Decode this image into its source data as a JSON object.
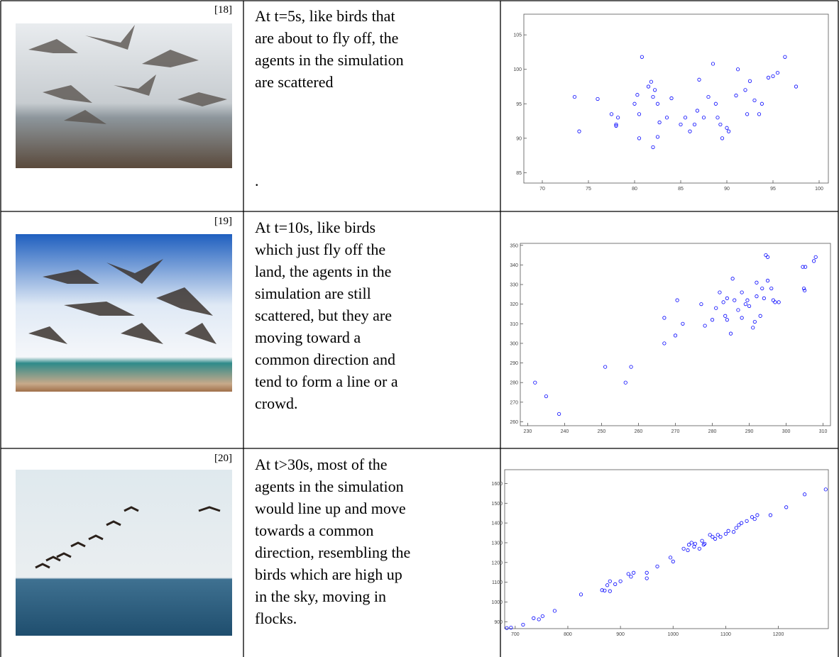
{
  "table": {
    "rows": [
      {
        "citation": "[18]",
        "text": [
          "At t=5s, like birds that",
          "are about to fly off, the",
          "agents in the simulation",
          "are scattered"
        ],
        "note": "."
      },
      {
        "citation": "[19]",
        "text": [
          "At t=10s, like birds",
          "which just fly off the",
          "land, the agents in the",
          "simulation are still",
          "scattered, but they are",
          "moving toward a",
          "common direction and",
          "tend to form a line or a",
          "crowd."
        ]
      },
      {
        "citation": "[20]",
        "text": [
          "At t>30s, most of the",
          "agents in the simulation",
          "would line up and move",
          "towards a common",
          "direction, resembling the",
          "birds which are high up",
          "in the sky, moving in",
          "flocks."
        ]
      }
    ]
  },
  "chart_data": [
    {
      "type": "scatter",
      "color": "#0000ff",
      "xlim": [
        68,
        101
      ],
      "ylim": [
        83.5,
        108
      ],
      "xticks": [
        70,
        75,
        80,
        85,
        90,
        95,
        100
      ],
      "yticks": [
        85,
        90,
        95,
        100,
        105
      ],
      "x": [
        73.5,
        74,
        76,
        77.5,
        78,
        78.2,
        78,
        80,
        80.3,
        80.5,
        80.8,
        80.5,
        81.5,
        81.8,
        82,
        82.2,
        82.5,
        82,
        82.7,
        82.5,
        83.5,
        84,
        85,
        85.5,
        86,
        86.5,
        86.8,
        87,
        87.5,
        88,
        88.5,
        88.8,
        89,
        89.3,
        89.5,
        90,
        90.2,
        91,
        91.2,
        92,
        92.2,
        92.5,
        93,
        93.5,
        93.8,
        94.5,
        95,
        95.5,
        96.3,
        97.5
      ],
      "values": [
        96,
        91,
        95.7,
        93.5,
        92,
        93,
        91.8,
        95,
        96.3,
        93.5,
        101.8,
        90,
        97.5,
        98.2,
        96,
        97,
        95,
        88.7,
        92.3,
        90.2,
        93,
        95.8,
        92,
        93,
        91,
        92,
        94,
        98.5,
        93,
        96,
        100.8,
        95,
        93,
        92,
        90,
        91.5,
        91,
        96.2,
        100,
        97,
        93.5,
        98.3,
        95.5,
        93.5,
        95,
        98.8,
        99,
        99.5,
        101.8,
        97.5
      ]
    },
    {
      "type": "scatter",
      "color": "#0000ff",
      "xlim": [
        228,
        312
      ],
      "ylim": [
        258,
        351
      ],
      "xticks": [
        230,
        240,
        250,
        260,
        270,
        280,
        290,
        300,
        310
      ],
      "yticks": [
        260,
        270,
        280,
        290,
        300,
        310,
        320,
        330,
        340,
        350
      ],
      "x": [
        232,
        235,
        238.5,
        251,
        256.5,
        258,
        267,
        267,
        270,
        270.5,
        272,
        277,
        278,
        280,
        281,
        282,
        283,
        283.5,
        284,
        284,
        285,
        285.5,
        286,
        287,
        288,
        288,
        289,
        289.5,
        290,
        291,
        291.5,
        292,
        292,
        293,
        293.5,
        294,
        294.5,
        295,
        295,
        296,
        296.5,
        297,
        298,
        304.5,
        304.8,
        305,
        305.2,
        307.5,
        308
      ],
      "values": [
        280,
        273,
        264,
        288,
        280,
        288,
        300,
        313,
        304,
        322,
        310,
        320,
        309,
        312,
        318,
        326,
        321,
        314,
        312,
        323,
        305,
        333,
        322,
        317,
        313,
        326,
        320,
        322,
        319,
        308,
        311,
        324,
        331,
        314,
        328,
        323,
        345,
        344,
        332,
        328,
        322,
        321,
        321,
        339,
        328,
        327,
        339,
        342,
        344
      ]
    },
    {
      "type": "scatter",
      "color": "#0000ff",
      "xlim": [
        680,
        1295
      ],
      "ylim": [
        865,
        1670
      ],
      "xticks": [
        700,
        800,
        900,
        1000,
        1100,
        1200
      ],
      "yticks": [
        900,
        1000,
        1100,
        1200,
        1300,
        1400,
        1500,
        1600
      ],
      "x": [
        684,
        692,
        715,
        735,
        745,
        752,
        775,
        825,
        865,
        870,
        875,
        880,
        880,
        890,
        900,
        915,
        920,
        925,
        950,
        950,
        970,
        995,
        1000,
        1020,
        1028,
        1030,
        1035,
        1040,
        1042,
        1050,
        1055,
        1058,
        1060,
        1070,
        1075,
        1080,
        1085,
        1090,
        1100,
        1105,
        1115,
        1120,
        1125,
        1130,
        1140,
        1150,
        1155,
        1160,
        1185,
        1215,
        1250,
        1290
      ],
      "values": [
        868,
        870,
        885,
        918,
        912,
        928,
        955,
        1038,
        1060,
        1058,
        1085,
        1055,
        1105,
        1090,
        1105,
        1142,
        1128,
        1148,
        1120,
        1148,
        1180,
        1225,
        1205,
        1270,
        1262,
        1290,
        1300,
        1280,
        1295,
        1270,
        1310,
        1290,
        1295,
        1340,
        1330,
        1320,
        1340,
        1330,
        1345,
        1360,
        1355,
        1375,
        1390,
        1400,
        1410,
        1430,
        1420,
        1440,
        1440,
        1480,
        1545,
        1570
      ]
    }
  ]
}
